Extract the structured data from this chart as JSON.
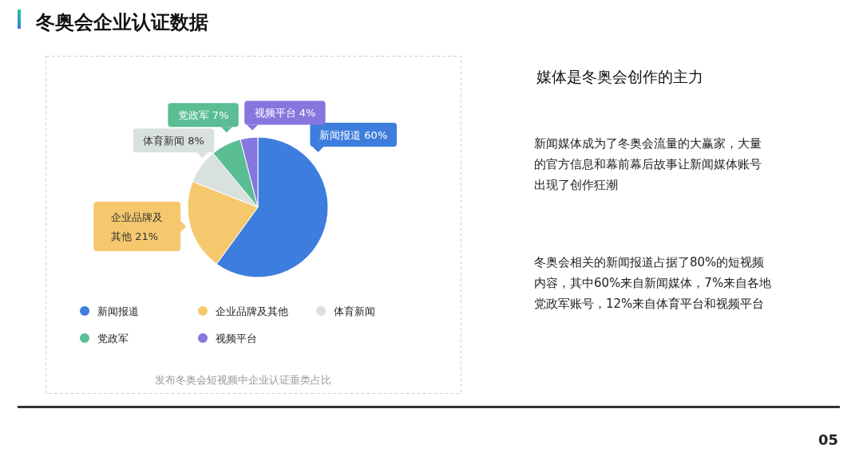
{
  "chart_data": {
    "type": "pie",
    "title": "冬奥会企业认证数据",
    "subtitle": "发布冬奥会短视频中企业认证垂类占比",
    "categories": [
      "新闻报道",
      "企业品牌及其他",
      "体育新闻",
      "党政军",
      "视频平台"
    ],
    "values": [
      60,
      21,
      8,
      7,
      4
    ],
    "colors": [
      "#3d7ddd",
      "#f6c86d",
      "#d8e1de",
      "#5bbd94",
      "#8577de"
    ],
    "value_labels": [
      "新闻报道 60%",
      "企业品牌及其他 21%",
      "体育新闻 8%",
      "党政军 7%",
      "视频平台 4%"
    ],
    "legend": "bottom",
    "annotations": [
      "媒体是冬奥会创作的主力",
      "新闻媒体成为了冬奥会流量的大赢家，大量的官方信息和幕前幕后故事让新闻媒体账号出现了创作狂潮",
      "冬奥会相关的新闻报道占据了80%的短视频内容，其中60%来自新闻媒体，7%来自各地党政军账号，12%来自体育平台和视频平台",
      "05"
    ]
  }
}
